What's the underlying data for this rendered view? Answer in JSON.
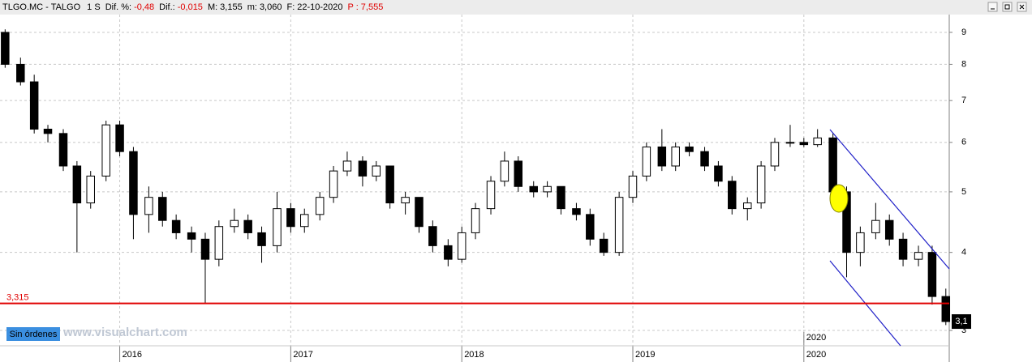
{
  "header": {
    "symbol": "TLGO.MC - TALGO",
    "timeframe": "1 S",
    "stats": [
      {
        "label": "Dif. %:",
        "value": "-0,48",
        "color": "#e00000"
      },
      {
        "label": "Dif.:",
        "value": "-0,015",
        "color": "#e00000"
      },
      {
        "label": "M:",
        "value": "3,155",
        "color": "#000000"
      },
      {
        "label": "m:",
        "value": "3,060",
        "color": "#000000"
      },
      {
        "label": "F:",
        "value": "22-10-2020",
        "color": "#000000"
      },
      {
        "label": "P :",
        "value": "7,555",
        "color": "#e00000",
        "label_color": "#e00000"
      }
    ]
  },
  "watermark": "www.visualchart.com",
  "orders_button": "Sin órdenes",
  "chart_data": {
    "type": "candlestick",
    "log_scale": true,
    "grid": true,
    "up_color": "#ffffff",
    "down_color": "#000000",
    "xlim": [
      2015.3,
      2020.85
    ],
    "xticks": [
      2016,
      2017,
      2018,
      2019,
      2020
    ],
    "ylim": [
      2.835,
      9.61
    ],
    "yticks": [
      3,
      4,
      5,
      6,
      7,
      8,
      9
    ],
    "x": [
      2015.33,
      2015.42,
      2015.5,
      2015.58,
      2015.67,
      2015.75,
      2015.83,
      2015.92,
      2016,
      2016.08,
      2016.17,
      2016.25,
      2016.33,
      2016.42,
      2016.5,
      2016.58,
      2016.67,
      2016.75,
      2016.83,
      2016.92,
      2017,
      2017.08,
      2017.17,
      2017.25,
      2017.33,
      2017.42,
      2017.5,
      2017.58,
      2017.67,
      2017.75,
      2017.83,
      2017.92,
      2018,
      2018.08,
      2018.17,
      2018.25,
      2018.33,
      2018.42,
      2018.5,
      2018.58,
      2018.67,
      2018.75,
      2018.83,
      2018.92,
      2019,
      2019.08,
      2019.17,
      2019.25,
      2019.33,
      2019.42,
      2019.5,
      2019.58,
      2019.67,
      2019.75,
      2019.83,
      2019.92,
      2020,
      2020.08,
      2020.17,
      2020.25,
      2020.33,
      2020.42,
      2020.5,
      2020.58,
      2020.67,
      2020.75,
      2020.83
    ],
    "open": [
      9.0,
      8.0,
      7.5,
      6.3,
      6.2,
      5.5,
      4.8,
      5.3,
      6.4,
      5.8,
      4.6,
      4.9,
      4.5,
      4.3,
      4.2,
      3.9,
      4.4,
      4.5,
      4.3,
      4.1,
      4.7,
      4.4,
      4.6,
      4.9,
      5.4,
      5.6,
      5.3,
      5.5,
      4.8,
      4.9,
      4.4,
      4.1,
      3.9,
      4.3,
      4.7,
      5.2,
      5.6,
      5.1,
      5.0,
      5.1,
      4.7,
      4.6,
      4.2,
      4.0,
      4.9,
      5.3,
      5.9,
      5.5,
      5.9,
      5.8,
      5.5,
      5.2,
      4.7,
      4.8,
      5.5,
      6.0,
      6.0,
      5.95,
      6.1,
      5.0,
      4.0,
      4.3,
      4.5,
      4.2,
      3.9,
      4.0,
      3.4
    ],
    "high": [
      9.1,
      8.2,
      7.7,
      6.4,
      6.3,
      5.6,
      5.4,
      6.5,
      6.5,
      5.9,
      5.1,
      5.0,
      4.6,
      4.4,
      4.3,
      4.5,
      4.7,
      4.6,
      4.4,
      5.0,
      4.8,
      4.7,
      5.0,
      5.5,
      5.8,
      5.7,
      5.6,
      5.5,
      5.0,
      4.9,
      4.5,
      4.2,
      4.4,
      4.8,
      5.3,
      5.8,
      5.7,
      5.2,
      5.2,
      5.1,
      4.8,
      4.7,
      4.3,
      5.0,
      5.4,
      6.0,
      6.3,
      6.0,
      6.0,
      5.9,
      5.6,
      5.3,
      4.9,
      5.6,
      6.1,
      6.4,
      6.1,
      6.3,
      6.2,
      5.1,
      4.4,
      4.8,
      4.6,
      4.3,
      4.1,
      4.1,
      3.5
    ],
    "low": [
      7.9,
      7.4,
      6.2,
      6.0,
      5.4,
      4.0,
      4.7,
      5.2,
      5.7,
      4.2,
      4.3,
      4.4,
      4.2,
      4.0,
      3.32,
      3.8,
      4.3,
      4.2,
      3.85,
      4.0,
      4.3,
      4.3,
      4.5,
      4.8,
      5.3,
      5.1,
      5.2,
      4.7,
      4.6,
      4.3,
      4.0,
      3.8,
      3.85,
      4.2,
      4.6,
      5.1,
      5.0,
      4.9,
      4.9,
      4.6,
      4.5,
      4.1,
      3.95,
      3.95,
      4.8,
      5.2,
      5.4,
      5.4,
      5.7,
      5.4,
      5.1,
      4.6,
      4.5,
      4.7,
      5.4,
      5.9,
      5.9,
      5.9,
      4.9,
      3.65,
      3.8,
      4.2,
      4.1,
      3.8,
      3.8,
      3.3,
      3.06
    ],
    "close": [
      8.0,
      7.5,
      6.3,
      6.2,
      5.5,
      4.8,
      5.3,
      6.4,
      5.8,
      4.6,
      4.9,
      4.5,
      4.3,
      4.2,
      3.9,
      4.4,
      4.5,
      4.3,
      4.1,
      4.7,
      4.4,
      4.6,
      4.9,
      5.4,
      5.6,
      5.3,
      5.5,
      4.8,
      4.9,
      4.4,
      4.1,
      3.9,
      4.3,
      4.7,
      5.2,
      5.6,
      5.1,
      5.0,
      5.1,
      4.7,
      4.6,
      4.2,
      4.0,
      4.9,
      5.3,
      5.9,
      5.5,
      5.9,
      5.8,
      5.5,
      5.2,
      4.7,
      4.8,
      5.5,
      6.0,
      6.0,
      5.95,
      6.1,
      5.0,
      4.0,
      4.3,
      4.5,
      4.2,
      3.9,
      4.0,
      3.4,
      3.1
    ],
    "hline": {
      "value": 3.315,
      "label": "3,315",
      "color": "#e00000"
    },
    "last_price": {
      "value": 3.1,
      "label": "3,1"
    }
  }
}
